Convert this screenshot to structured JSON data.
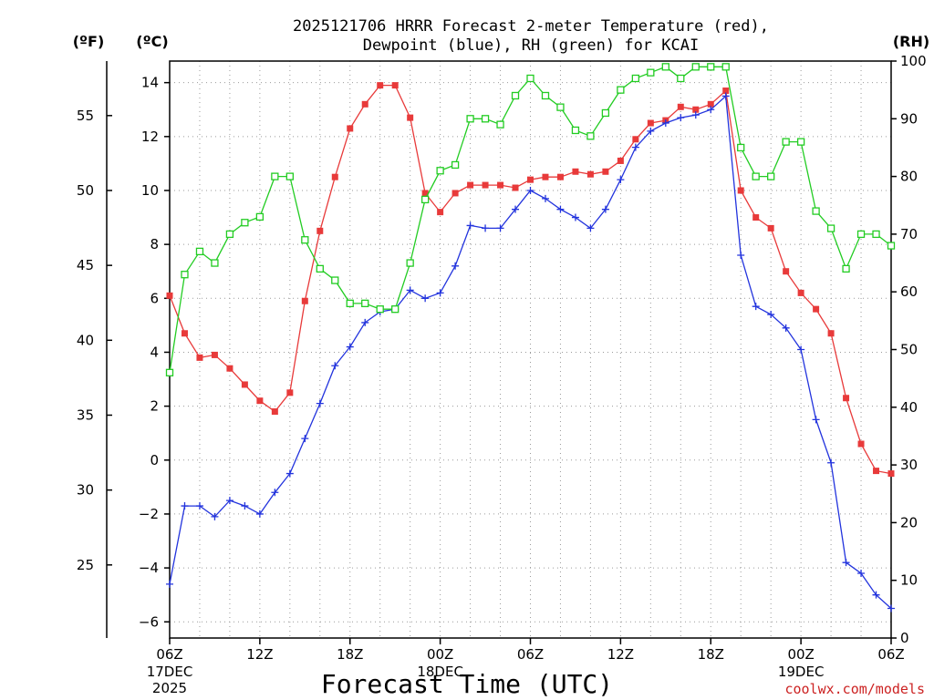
{
  "chart_data": {
    "type": "line",
    "title": [
      "2025121706 HRRR Forecast 2-meter Temperature (red),",
      "Dewpoint (blue), RH (green) for KCAI"
    ],
    "xlabel": "Forecast Time (UTC)",
    "credit": "coolwx.com/models",
    "axis_units": {
      "fahrenheit": "(ºF)",
      "celsius": "(ºC)",
      "rh": "(RH)"
    },
    "x_range_hours": [
      0,
      48
    ],
    "ylim_c": [
      -6.6,
      14.8
    ],
    "ylim_rh": [
      0,
      100
    ],
    "celsius_ticks": [
      "14",
      "12",
      "10",
      "8",
      "6",
      "4",
      "2",
      "0",
      "−2",
      "−4",
      "−6"
    ],
    "celsius_values": [
      14,
      12,
      10,
      8,
      6,
      4,
      2,
      0,
      -2,
      -4,
      -6
    ],
    "fahrenheit_ticks": [
      "55",
      "50",
      "45",
      "40",
      "35",
      "30",
      "25"
    ],
    "fahrenheit_values": [
      55,
      50,
      45,
      40,
      35,
      30,
      25
    ],
    "rh_ticks": [
      "100",
      "90",
      "80",
      "70",
      "60",
      "50",
      "40",
      "30",
      "20",
      "10",
      "0"
    ],
    "rh_values": [
      100,
      90,
      80,
      70,
      60,
      50,
      40,
      30,
      20,
      10,
      0
    ],
    "x_ticks": [
      {
        "hour": 0,
        "label": "06Z"
      },
      {
        "hour": 6,
        "label": "12Z"
      },
      {
        "hour": 12,
        "label": "18Z"
      },
      {
        "hour": 18,
        "label": "00Z"
      },
      {
        "hour": 24,
        "label": "06Z"
      },
      {
        "hour": 30,
        "label": "12Z"
      },
      {
        "hour": 36,
        "label": "18Z"
      },
      {
        "hour": 42,
        "label": "00Z"
      },
      {
        "hour": 48,
        "label": "06Z"
      }
    ],
    "date_labels": [
      {
        "hour": 0,
        "lines": [
          "17DEC",
          "2025"
        ]
      },
      {
        "hour": 18,
        "lines": [
          "18DEC"
        ]
      },
      {
        "hour": 42,
        "lines": [
          "19DEC"
        ]
      }
    ],
    "series": [
      {
        "name": "Temperature",
        "color": "#e83a3a",
        "marker": "filled-square",
        "axis": "celsius",
        "values": [
          6.1,
          4.7,
          3.8,
          3.9,
          3.4,
          2.8,
          2.2,
          1.8,
          2.5,
          5.9,
          8.5,
          10.5,
          12.3,
          13.2,
          13.9,
          13.9,
          12.7,
          9.9,
          9.2,
          9.9,
          10.2,
          10.2,
          10.2,
          10.1,
          10.4,
          10.5,
          10.5,
          10.7,
          10.6,
          10.7,
          11.1,
          11.9,
          12.5,
          12.6,
          13.1,
          13.0,
          13.2,
          13.7,
          10.0,
          9.0,
          8.6,
          7.0,
          6.2,
          5.6,
          4.7,
          2.3,
          0.6,
          -0.4,
          -0.5
        ]
      },
      {
        "name": "Dewpoint",
        "color": "#2233dd",
        "marker": "plus",
        "axis": "celsius",
        "values": [
          -4.6,
          -1.7,
          -1.7,
          -2.1,
          -1.5,
          -1.7,
          -2.0,
          -1.2,
          -0.5,
          0.8,
          2.1,
          3.5,
          4.2,
          5.1,
          5.5,
          5.6,
          6.3,
          6.0,
          6.2,
          7.2,
          8.7,
          8.6,
          8.6,
          9.3,
          10.0,
          9.7,
          9.3,
          9.0,
          8.6,
          9.3,
          10.4,
          11.6,
          12.2,
          12.5,
          12.7,
          12.8,
          13.0,
          13.5,
          7.6,
          5.7,
          5.4,
          4.9,
          4.1,
          1.5,
          -0.1,
          -3.8,
          -4.2,
          -5.0,
          -5.5
        ]
      },
      {
        "name": "RH",
        "color": "#22cc22",
        "marker": "open-square",
        "axis": "rh",
        "values": [
          46,
          63,
          67,
          65,
          70,
          72,
          73,
          80,
          80,
          69,
          64,
          62,
          58,
          58,
          57,
          57,
          65,
          76,
          81,
          82,
          90,
          90,
          89,
          94,
          97,
          94,
          92,
          88,
          87,
          91,
          95,
          97,
          98,
          99,
          97,
          99,
          99,
          99,
          85,
          80,
          80,
          86,
          86,
          74,
          71,
          64,
          70,
          70,
          68
        ]
      }
    ]
  }
}
